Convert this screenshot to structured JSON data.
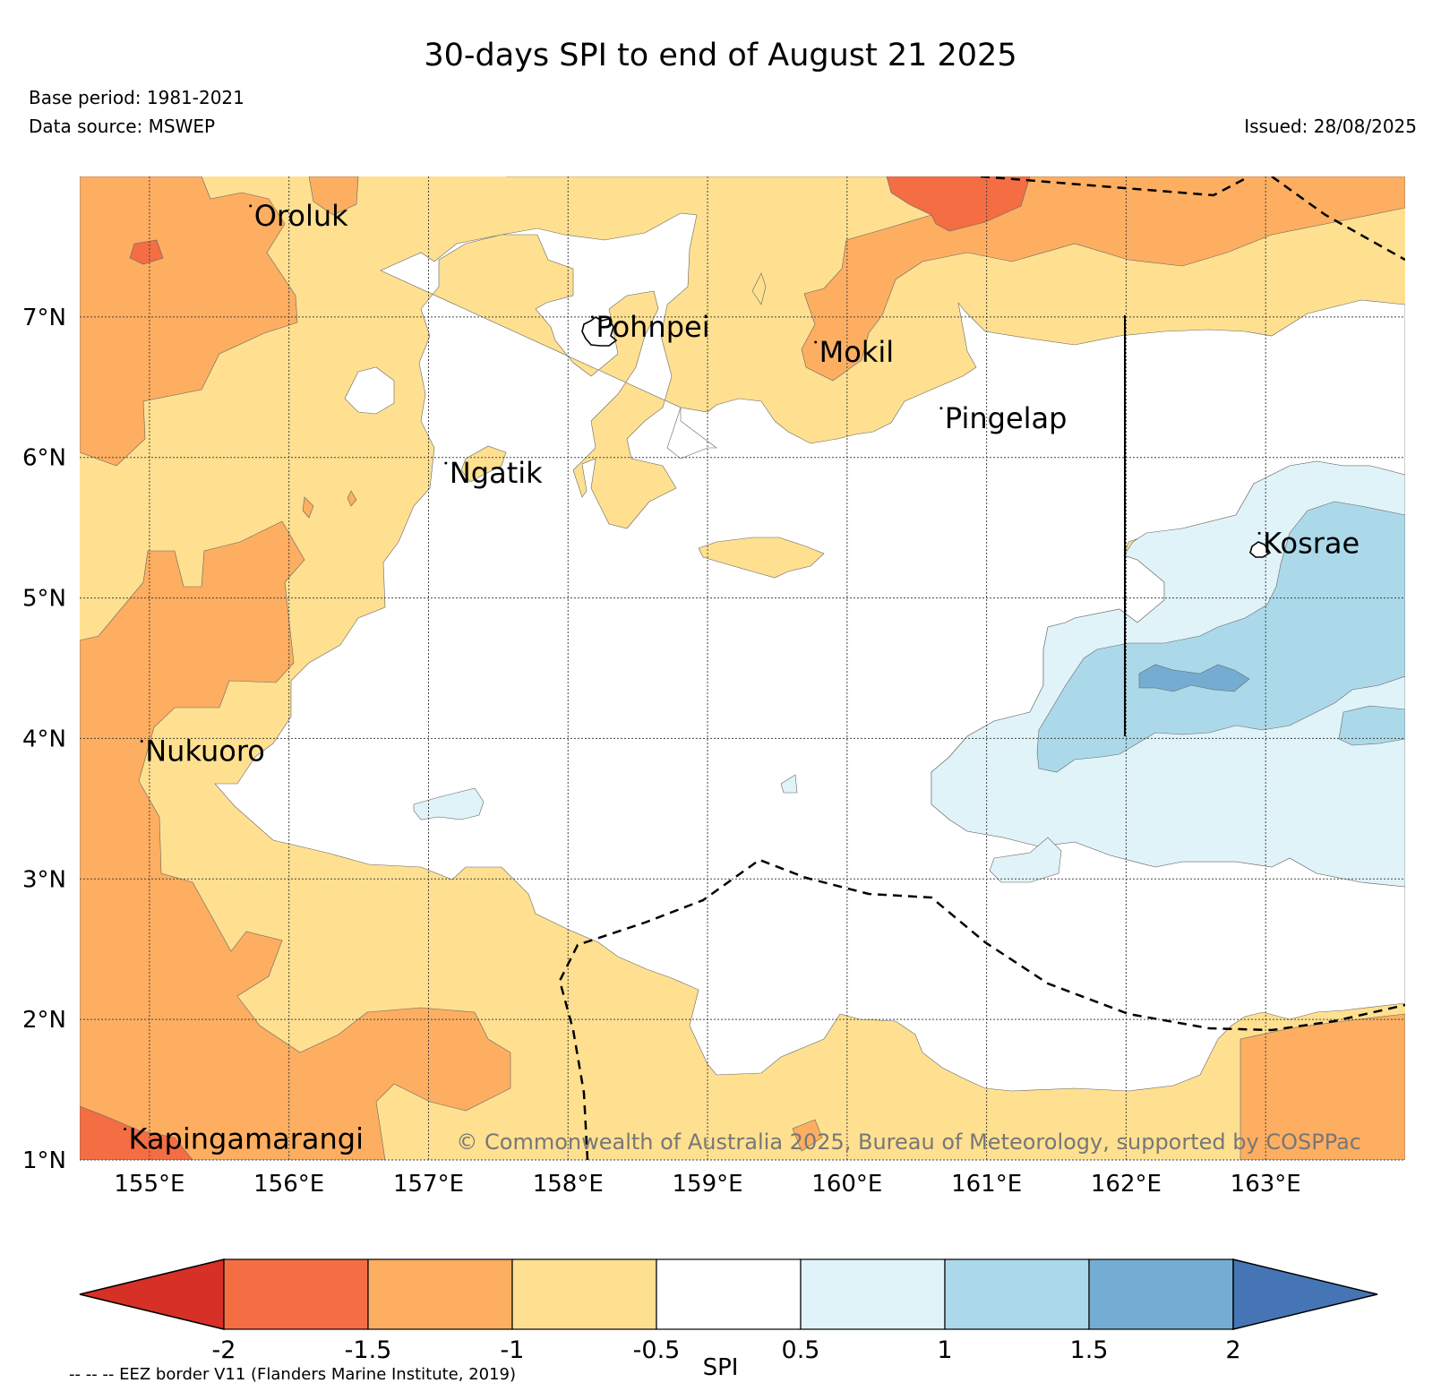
{
  "header": {
    "title": "30-days SPI to end of August 21 2025",
    "base_period": "Base period: 1981-2021",
    "data_source": "Data source: MSWEP",
    "issued": "Issued: 28/08/2025"
  },
  "map": {
    "lon_range": [
      154.5,
      164
    ],
    "lat_range": [
      1,
      8
    ],
    "lon_ticks": [
      {
        "value": 155,
        "label": "155°E"
      },
      {
        "value": 156,
        "label": "156°E"
      },
      {
        "value": 157,
        "label": "157°E"
      },
      {
        "value": 158,
        "label": "158°E"
      },
      {
        "value": 159,
        "label": "159°E"
      },
      {
        "value": 160,
        "label": "160°E"
      },
      {
        "value": 161,
        "label": "161°E"
      },
      {
        "value": 162,
        "label": "162°E"
      },
      {
        "value": 163,
        "label": "163°E"
      }
    ],
    "lat_ticks": [
      {
        "value": 1,
        "label": "1°N"
      },
      {
        "value": 2,
        "label": "2°N"
      },
      {
        "value": 3,
        "label": "3°N"
      },
      {
        "value": 4,
        "label": "4°N"
      },
      {
        "value": 5,
        "label": "5°N"
      },
      {
        "value": 6,
        "label": "6°N"
      },
      {
        "value": 7,
        "label": "7°N"
      }
    ],
    "places": [
      {
        "name": "Oroluk",
        "lon": 155.75,
        "lat": 7.65
      },
      {
        "name": "Pohnpei",
        "lon": 158.2,
        "lat": 6.86
      },
      {
        "name": "Mokil",
        "lon": 159.8,
        "lat": 6.68
      },
      {
        "name": "Pingelap",
        "lon": 160.7,
        "lat": 6.21
      },
      {
        "name": "Ngatik",
        "lon": 157.15,
        "lat": 5.82
      },
      {
        "name": "Kosrae",
        "lon": 162.98,
        "lat": 5.32
      },
      {
        "name": "Nukuoro",
        "lon": 154.97,
        "lat": 3.84
      },
      {
        "name": "Kapingamarangi",
        "lon": 154.85,
        "lat": 1.08
      }
    ],
    "copyright": "© Commonwealth of Australia 2025, Bureau of Meteorology, supported by COSPPac"
  },
  "colorbar": {
    "label": "SPI",
    "ticks": [
      "-2",
      "-1.5",
      "-1",
      "-0.5",
      "0.5",
      "1",
      "1.5",
      "2"
    ],
    "colors": [
      "#d73027",
      "#f46d43",
      "#fdae61",
      "#fee090",
      "#ffffff",
      "#e0f3f8",
      "#abd9e9",
      "#74add1",
      "#4575b4"
    ],
    "eez_note": "-- -- -- EEZ border V11 (Flanders Marine Institute, 2019)"
  }
}
